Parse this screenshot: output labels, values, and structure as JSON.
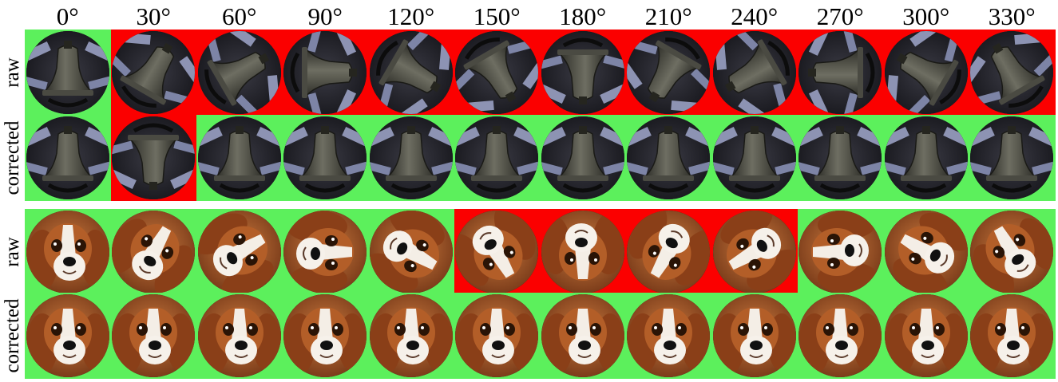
{
  "angles": [
    "0°",
    "30°",
    "60°",
    "90°",
    "120°",
    "150°",
    "180°",
    "210°",
    "240°",
    "270°",
    "300°",
    "330°"
  ],
  "colors": {
    "correct": "#5cf05c",
    "incorrect": "#fb0000"
  },
  "panels": [
    {
      "subject": "bell-icon",
      "rows": [
        {
          "label": "raw",
          "rotations": [
            0,
            30,
            60,
            90,
            120,
            150,
            180,
            210,
            240,
            270,
            300,
            330
          ],
          "status": [
            "correct",
            "incorrect",
            "incorrect",
            "incorrect",
            "incorrect",
            "incorrect",
            "incorrect",
            "incorrect",
            "incorrect",
            "incorrect",
            "incorrect",
            "incorrect"
          ]
        },
        {
          "label": "corrected",
          "rotations": [
            0,
            180,
            0,
            0,
            0,
            0,
            0,
            0,
            0,
            0,
            0,
            0
          ],
          "status": [
            "correct",
            "incorrect",
            "correct",
            "correct",
            "correct",
            "correct",
            "correct",
            "correct",
            "correct",
            "correct",
            "correct",
            "correct"
          ]
        }
      ]
    },
    {
      "subject": "dog-face-icon",
      "rows": [
        {
          "label": "raw",
          "rotations": [
            0,
            30,
            60,
            90,
            120,
            150,
            180,
            210,
            240,
            270,
            300,
            330
          ],
          "status": [
            "correct",
            "correct",
            "correct",
            "correct",
            "correct",
            "incorrect",
            "incorrect",
            "incorrect",
            "incorrect",
            "correct",
            "correct",
            "correct"
          ]
        },
        {
          "label": "corrected",
          "rotations": [
            0,
            0,
            0,
            0,
            0,
            0,
            0,
            0,
            0,
            0,
            0,
            0
          ],
          "status": [
            "correct",
            "correct",
            "correct",
            "correct",
            "correct",
            "correct",
            "correct",
            "correct",
            "correct",
            "correct",
            "correct",
            "correct"
          ]
        }
      ]
    }
  ]
}
